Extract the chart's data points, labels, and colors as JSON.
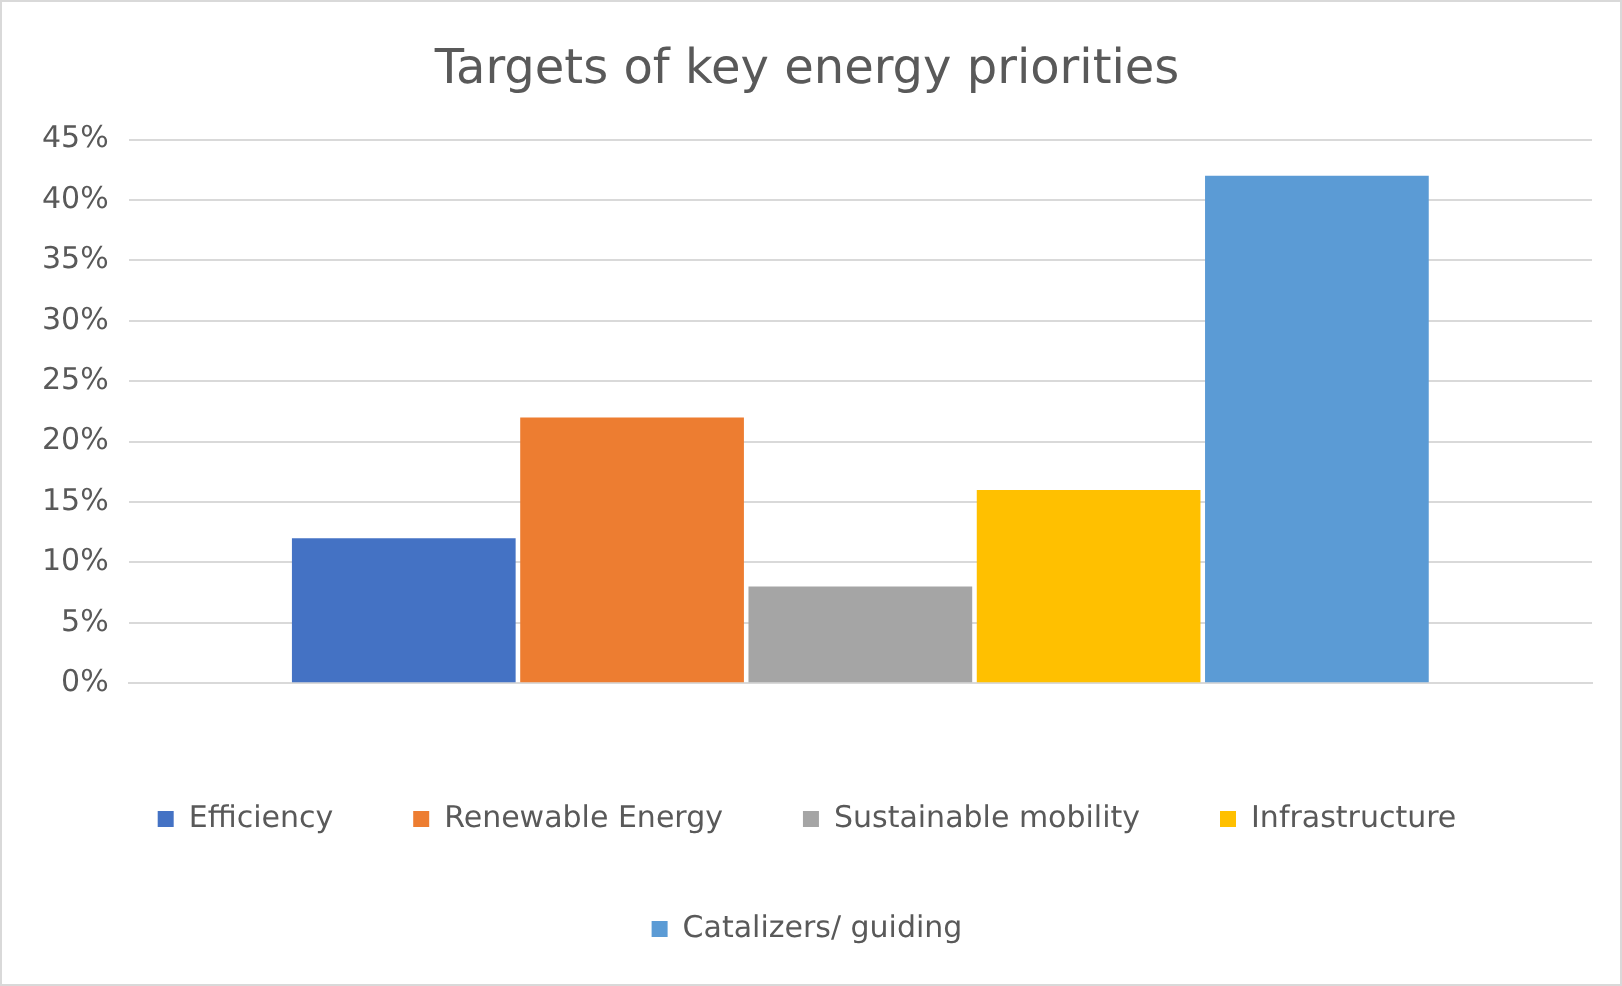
{
  "chart_data": {
    "type": "bar",
    "title": "Targets of key energy priorities",
    "categories": [
      null
    ],
    "series": [
      {
        "name": "Efficiency",
        "color": "#4472c4",
        "values": [
          12
        ]
      },
      {
        "name": "Renewable Energy",
        "color": "#ed7d31",
        "values": [
          22
        ]
      },
      {
        "name": "Sustainable mobility",
        "color": "#a5a5a5",
        "values": [
          8
        ]
      },
      {
        "name": "Infrastructure",
        "color": "#ffc000",
        "values": [
          16
        ]
      },
      {
        "name": "Catalizers/ guiding",
        "color": "#5b9bd5",
        "values": [
          42
        ]
      }
    ],
    "ylim": [
      0,
      45
    ],
    "yticks": [
      {
        "value": 0,
        "label": "0%"
      },
      {
        "value": 5,
        "label": "5%"
      },
      {
        "value": 10,
        "label": "10%"
      },
      {
        "value": 15,
        "label": "15%"
      },
      {
        "value": 20,
        "label": "20%"
      },
      {
        "value": 25,
        "label": "25%"
      },
      {
        "value": 30,
        "label": "30%"
      },
      {
        "value": 35,
        "label": "35%"
      },
      {
        "value": 40,
        "label": "40%"
      },
      {
        "value": 45,
        "label": "45%"
      }
    ],
    "grid": "y",
    "legend": "bottom"
  }
}
